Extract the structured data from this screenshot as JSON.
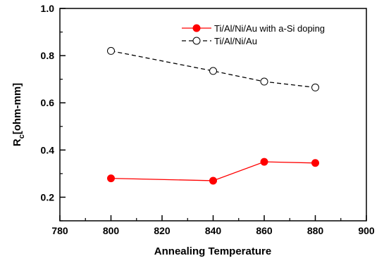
{
  "chart_data": {
    "type": "line",
    "xlabel": "Annealing Temperature",
    "ylabel_main": "R",
    "ylabel_sub": "c",
    "ylabel_rest": "[ohm-mm]",
    "xlim": [
      780,
      900
    ],
    "ylim": [
      0.1,
      1.0
    ],
    "xticks": [
      780,
      800,
      820,
      840,
      860,
      880,
      900
    ],
    "yticks": [
      0.2,
      0.4,
      0.6,
      0.8,
      1.0
    ],
    "xtick_labels": [
      "780",
      "800",
      "820",
      "840",
      "860",
      "880",
      "900"
    ],
    "ytick_labels": [
      "0.2",
      "0.4",
      "0.6",
      "0.8",
      "1.0"
    ],
    "legend_position": "top-right",
    "series": [
      {
        "name": "Ti/Al/Ni/Au with a-Si doping",
        "x": [
          800,
          840,
          860,
          880
        ],
        "y": [
          0.28,
          0.27,
          0.35,
          0.345
        ],
        "color": "#ff0000",
        "marker": "filled-circle",
        "line": "solid"
      },
      {
        "name": "Ti/Al/Ni/Au",
        "x": [
          800,
          840,
          860,
          880
        ],
        "y": [
          0.82,
          0.735,
          0.69,
          0.665
        ],
        "color": "#000000",
        "marker": "open-circle",
        "line": "dashed"
      }
    ]
  }
}
